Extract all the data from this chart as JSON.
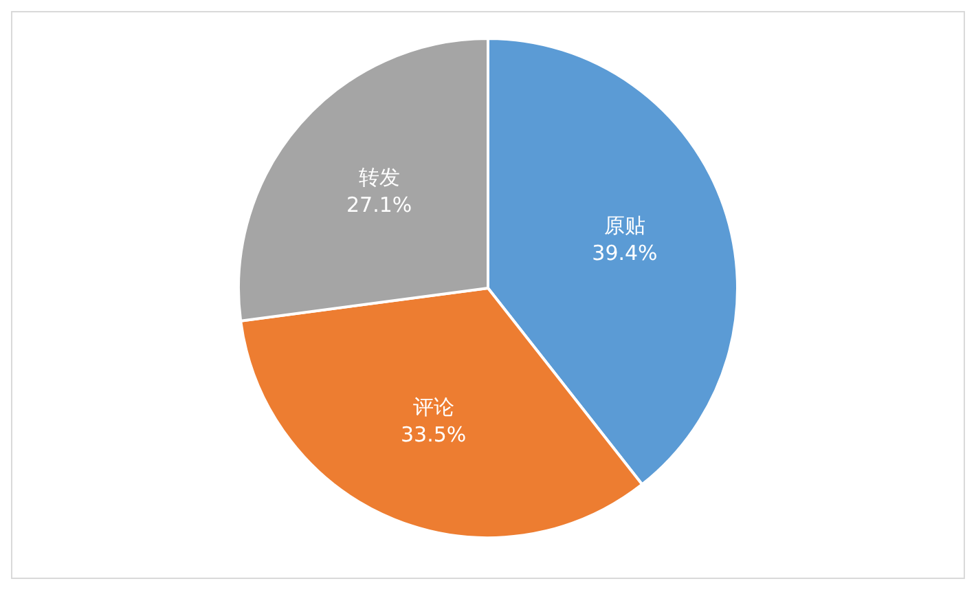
{
  "chart_data": {
    "type": "pie",
    "categories": [
      "原贴",
      "评论",
      "转发"
    ],
    "values": [
      39.4,
      33.5,
      27.1
    ],
    "colors": [
      "#5b9bd5",
      "#ed7d31",
      "#a5a5a5"
    ],
    "value_labels": [
      "39.4%",
      "33.5%",
      "27.1%"
    ]
  }
}
